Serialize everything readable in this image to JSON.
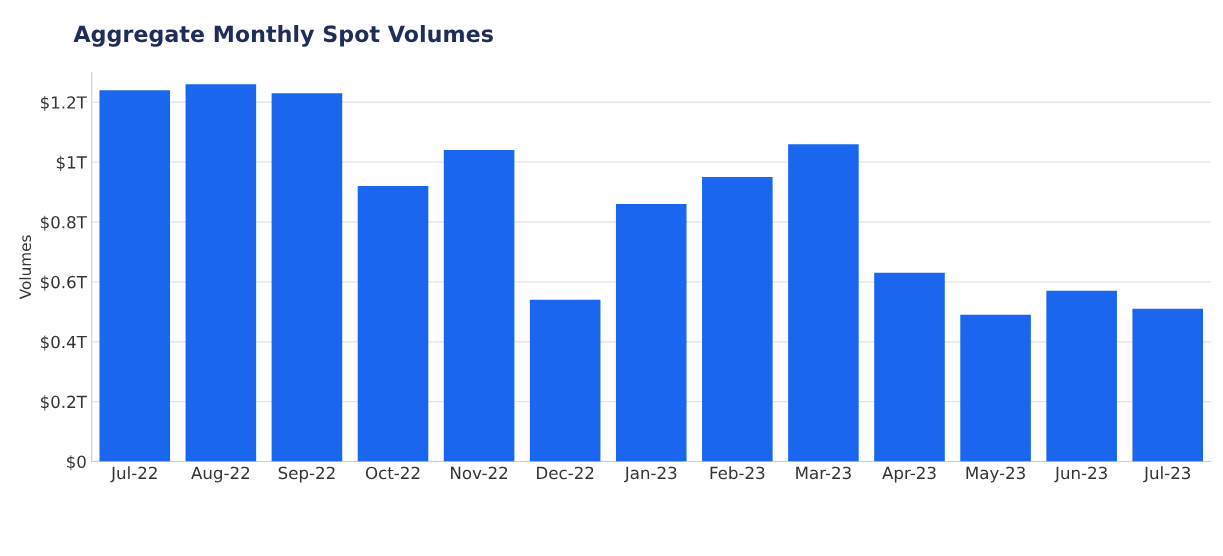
{
  "chart_data": {
    "type": "bar",
    "title": "Aggregate Monthly Spot Volumes",
    "ylabel": "Volumes",
    "categories": [
      "Jul-22",
      "Aug-22",
      "Sep-22",
      "Oct-22",
      "Nov-22",
      "Dec-22",
      "Jan-23",
      "Feb-23",
      "Mar-23",
      "Apr-23",
      "May-23",
      "Jun-23",
      "Jul-23"
    ],
    "values": [
      1.24,
      1.26,
      1.23,
      0.92,
      1.04,
      0.54,
      0.86,
      0.95,
      1.06,
      0.63,
      0.49,
      0.57,
      0.51
    ],
    "color": "#1a66ee",
    "ylim": [
      0,
      1.3
    ],
    "yticks": [
      {
        "value": 0,
        "label": "$0"
      },
      {
        "value": 0.2,
        "label": "$0.2T"
      },
      {
        "value": 0.4,
        "label": "$0.4T"
      },
      {
        "value": 0.6,
        "label": "$0.6T"
      },
      {
        "value": 0.8,
        "label": "$0.8T"
      },
      {
        "value": 1,
        "label": "$1T"
      },
      {
        "value": 1.2,
        "label": "$1.2T"
      }
    ],
    "grid": "y"
  }
}
